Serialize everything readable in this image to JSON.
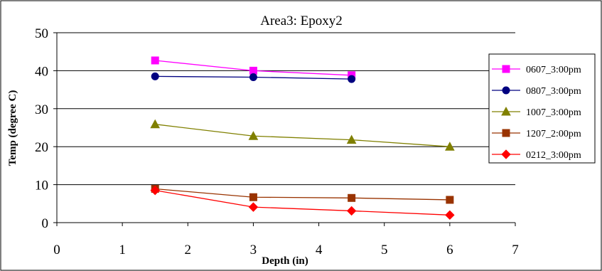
{
  "chart_data": {
    "type": "line",
    "title": "Area3: Epoxy2",
    "xlabel": "Depth (in)",
    "ylabel": "Temp (degree C)",
    "xlim": [
      0,
      7
    ],
    "ylim": [
      0,
      50
    ],
    "xticks": [
      0,
      1,
      2,
      3,
      4,
      5,
      6,
      7
    ],
    "yticks": [
      0,
      10,
      20,
      30,
      40,
      50
    ],
    "grid": "horizontal",
    "legend_position": "right",
    "series": [
      {
        "name": "0607_3:00pm",
        "color": "#FF00FF",
        "marker": "square",
        "x": [
          1.5,
          3,
          4.5
        ],
        "y": [
          42.7,
          40.0,
          38.8
        ]
      },
      {
        "name": "0807_3:00pm",
        "color": "#000080",
        "marker": "circle",
        "x": [
          1.5,
          3,
          4.5
        ],
        "y": [
          38.5,
          38.3,
          37.8
        ]
      },
      {
        "name": "1007_3:00pm",
        "color": "#808000",
        "marker": "triangle",
        "x": [
          1.5,
          3,
          4.5,
          6
        ],
        "y": [
          25.9,
          22.8,
          21.8,
          20.0
        ]
      },
      {
        "name": "1207_2:00pm",
        "color": "#993300",
        "marker": "square",
        "x": [
          1.5,
          3,
          4.5,
          6
        ],
        "y": [
          8.9,
          6.7,
          6.5,
          6.0
        ]
      },
      {
        "name": "0212_3:00pm",
        "color": "#FF0000",
        "marker": "diamond",
        "x": [
          1.5,
          3,
          4.5,
          6
        ],
        "y": [
          8.5,
          4.1,
          3.1,
          2.0
        ]
      }
    ]
  }
}
